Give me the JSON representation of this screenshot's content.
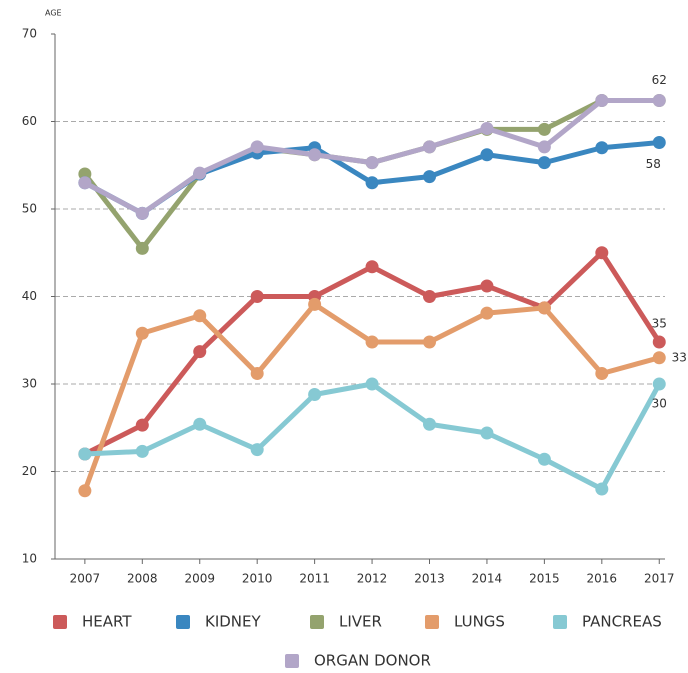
{
  "chart_data": {
    "type": "line",
    "y_label": "AGE",
    "x": [
      2007,
      2008,
      2009,
      2010,
      2011,
      2012,
      2013,
      2014,
      2015,
      2016,
      2017
    ],
    "xlim": [
      2006.48,
      2017.1
    ],
    "xticks": [
      2007,
      2008,
      2009,
      2010,
      2011,
      2012,
      2013,
      2014,
      2015,
      2016,
      2017
    ],
    "ylim": [
      10,
      70
    ],
    "yticks": [
      10,
      20,
      30,
      40,
      50,
      60,
      70
    ],
    "grid": true,
    "series": [
      {
        "name": "HEART",
        "color": "#cc5a5a",
        "values": [
          22,
          25.3,
          33.7,
          40,
          40,
          43.4,
          40,
          41.2,
          38.7,
          45,
          34.8
        ],
        "value_labels": [
          null,
          null,
          null,
          null,
          null,
          null,
          null,
          null,
          null,
          null,
          "35"
        ]
      },
      {
        "name": "KIDNEY",
        "color": "#3a87c0",
        "values": [
          53,
          49.5,
          54,
          56.4,
          57,
          53,
          53.7,
          56.2,
          55.3,
          57,
          57.6
        ],
        "value_labels": [
          null,
          null,
          null,
          null,
          null,
          null,
          null,
          null,
          null,
          null,
          "58"
        ]
      },
      {
        "name": "LIVER",
        "color": "#94a36e",
        "values": [
          54,
          45.5,
          54,
          57,
          56.2,
          55.3,
          57.1,
          59.1,
          59.1,
          62.4,
          62.4
        ]
      },
      {
        "name": "LUNGS",
        "color": "#e39c6b",
        "values": [
          17.8,
          35.8,
          37.8,
          31.2,
          39.1,
          34.8,
          34.8,
          38.1,
          38.7,
          31.2,
          33
        ],
        "value_labels": [
          null,
          null,
          null,
          null,
          null,
          null,
          null,
          null,
          null,
          null,
          "33"
        ]
      },
      {
        "name": "PANCREAS",
        "color": "#86c9d3",
        "values": [
          22,
          22.3,
          25.4,
          22.5,
          28.8,
          30,
          25.4,
          24.4,
          21.4,
          18,
          30
        ],
        "value_labels": [
          null,
          null,
          null,
          null,
          null,
          null,
          null,
          null,
          null,
          null,
          "30"
        ]
      },
      {
        "name": "ORGAN DONOR",
        "color": "#b2a6c8",
        "values": [
          53,
          49.5,
          54.1,
          57.1,
          56.2,
          55.3,
          57.1,
          59.2,
          57.1,
          62.4,
          62.4
        ],
        "value_labels": [
          null,
          null,
          null,
          null,
          null,
          null,
          null,
          null,
          null,
          null,
          "62"
        ]
      }
    ]
  }
}
